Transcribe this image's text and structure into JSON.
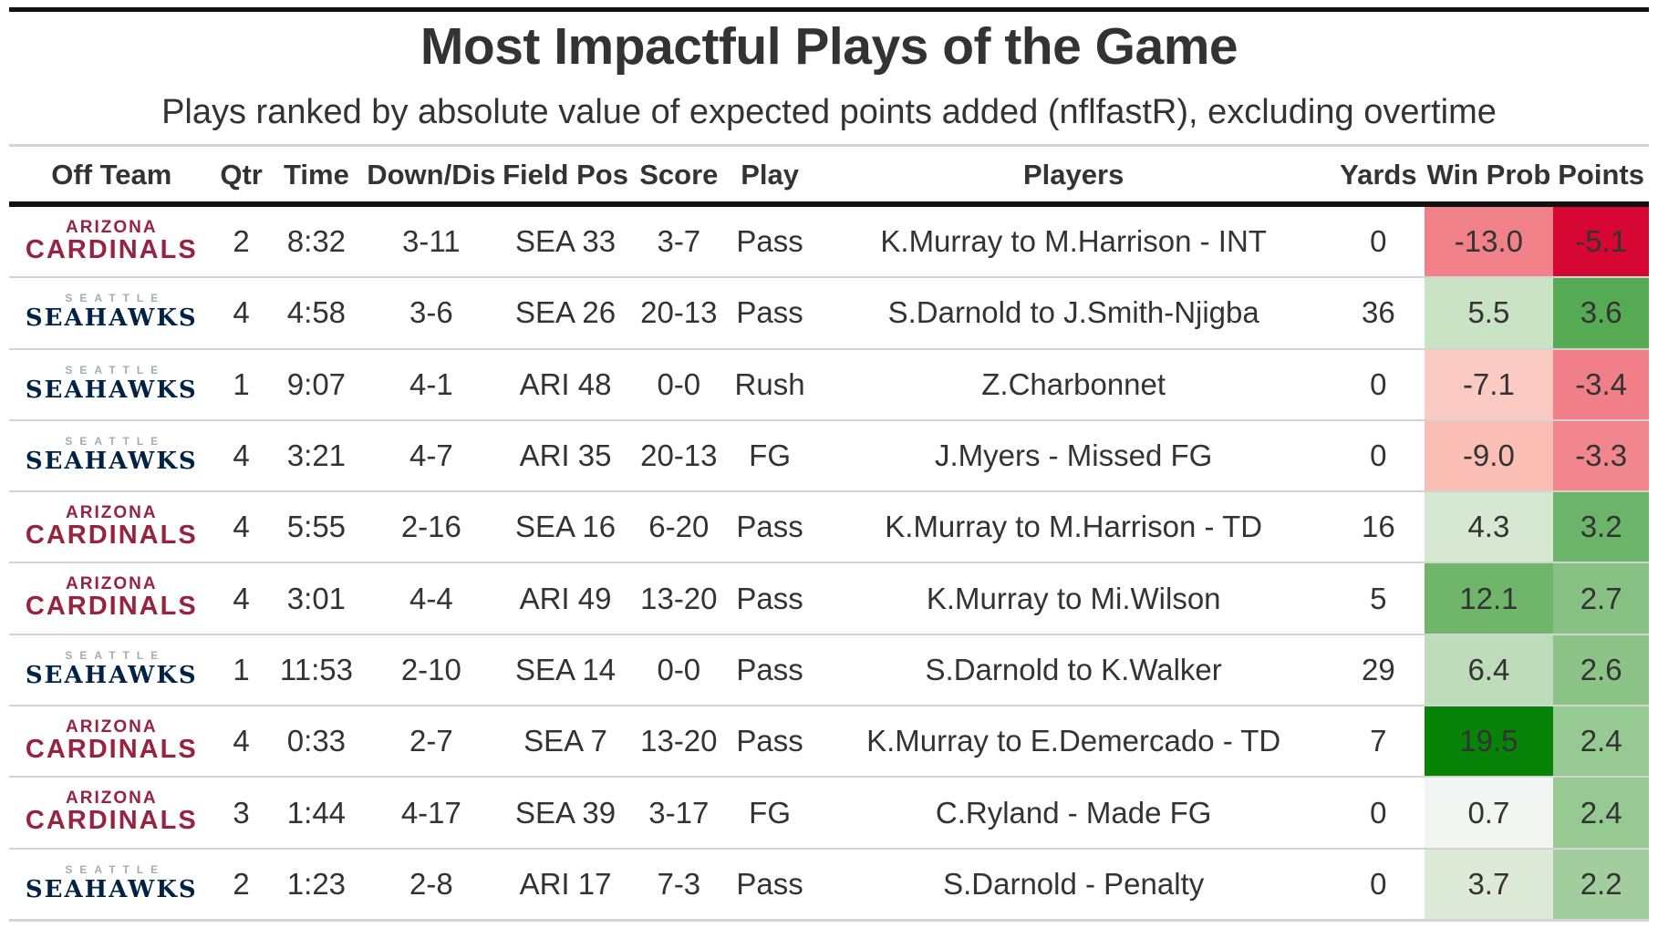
{
  "title": "Most Impactful Plays of the Game",
  "subtitle": "Plays ranked by absolute value of expected points added (nflfastR), excluding overtime",
  "columns": [
    "Off Team",
    "Qtr",
    "Time",
    "Down/Dis",
    "Field Pos",
    "Score",
    "Play",
    "Players",
    "Yards",
    "Win Prob",
    "Points"
  ],
  "teams": {
    "ARI": {
      "line1": "ARIZONA",
      "line2": "CARDINALS",
      "color": "#97233f"
    },
    "SEA": {
      "line1": "SEATTLE",
      "line2": "SEAHAWKS",
      "color": "#002244"
    }
  },
  "colors": {
    "negative_strong": "#d6002f",
    "negative_light": "#fbb8ae",
    "neutral": "#f7f7f7",
    "positive_light": "#d2e6cc",
    "positive_strong": "#008000"
  },
  "chart_data": {
    "type": "table",
    "title": "Most Impactful Plays of the Game",
    "subtitle": "Plays ranked by absolute value of expected points added (nflfastR), excluding overtime",
    "rows": [
      {
        "team": "ARI",
        "qtr": "2",
        "time": "8:32",
        "down": "3-11",
        "field_pos": "SEA 33",
        "score": "3-7",
        "play": "Pass",
        "players": "K.Murray to M.Harrison - INT",
        "yards": "0",
        "win_prob": -13.0,
        "points": -5.1
      },
      {
        "team": "SEA",
        "qtr": "4",
        "time": "4:58",
        "down": "3-6",
        "field_pos": "SEA 26",
        "score": "20-13",
        "play": "Pass",
        "players": "S.Darnold to J.Smith-Njigba",
        "yards": "36",
        "win_prob": 5.5,
        "points": 3.6
      },
      {
        "team": "SEA",
        "qtr": "1",
        "time": "9:07",
        "down": "4-1",
        "field_pos": "ARI 48",
        "score": "0-0",
        "play": "Rush",
        "players": "Z.Charbonnet",
        "yards": "0",
        "win_prob": -7.1,
        "points": -3.4
      },
      {
        "team": "SEA",
        "qtr": "4",
        "time": "3:21",
        "down": "4-7",
        "field_pos": "ARI 35",
        "score": "20-13",
        "play": "FG",
        "players": "J.Myers - Missed FG",
        "yards": "0",
        "win_prob": -9.0,
        "points": -3.3
      },
      {
        "team": "ARI",
        "qtr": "4",
        "time": "5:55",
        "down": "2-16",
        "field_pos": "SEA 16",
        "score": "6-20",
        "play": "Pass",
        "players": "K.Murray to M.Harrison - TD",
        "yards": "16",
        "win_prob": 4.3,
        "points": 3.2
      },
      {
        "team": "ARI",
        "qtr": "4",
        "time": "3:01",
        "down": "4-4",
        "field_pos": "ARI 49",
        "score": "13-20",
        "play": "Pass",
        "players": "K.Murray to Mi.Wilson",
        "yards": "5",
        "win_prob": 12.1,
        "points": 2.7
      },
      {
        "team": "SEA",
        "qtr": "1",
        "time": "11:53",
        "down": "2-10",
        "field_pos": "SEA 14",
        "score": "0-0",
        "play": "Pass",
        "players": "S.Darnold to K.Walker",
        "yards": "29",
        "win_prob": 6.4,
        "points": 2.6
      },
      {
        "team": "ARI",
        "qtr": "4",
        "time": "0:33",
        "down": "2-7",
        "field_pos": "SEA 7",
        "score": "13-20",
        "play": "Pass",
        "players": "K.Murray to E.Demercado - TD",
        "yards": "7",
        "win_prob": 19.5,
        "points": 2.4
      },
      {
        "team": "ARI",
        "qtr": "3",
        "time": "1:44",
        "down": "4-17",
        "field_pos": "SEA 39",
        "score": "3-17",
        "play": "FG",
        "players": "C.Ryland - Made FG",
        "yards": "0",
        "win_prob": 0.7,
        "points": 2.4
      },
      {
        "team": "SEA",
        "qtr": "2",
        "time": "1:23",
        "down": "2-8",
        "field_pos": "ARI 17",
        "score": "7-3",
        "play": "Pass",
        "players": "S.Darnold - Penalty",
        "yards": "0",
        "win_prob": 3.7,
        "points": 2.2
      }
    ]
  }
}
